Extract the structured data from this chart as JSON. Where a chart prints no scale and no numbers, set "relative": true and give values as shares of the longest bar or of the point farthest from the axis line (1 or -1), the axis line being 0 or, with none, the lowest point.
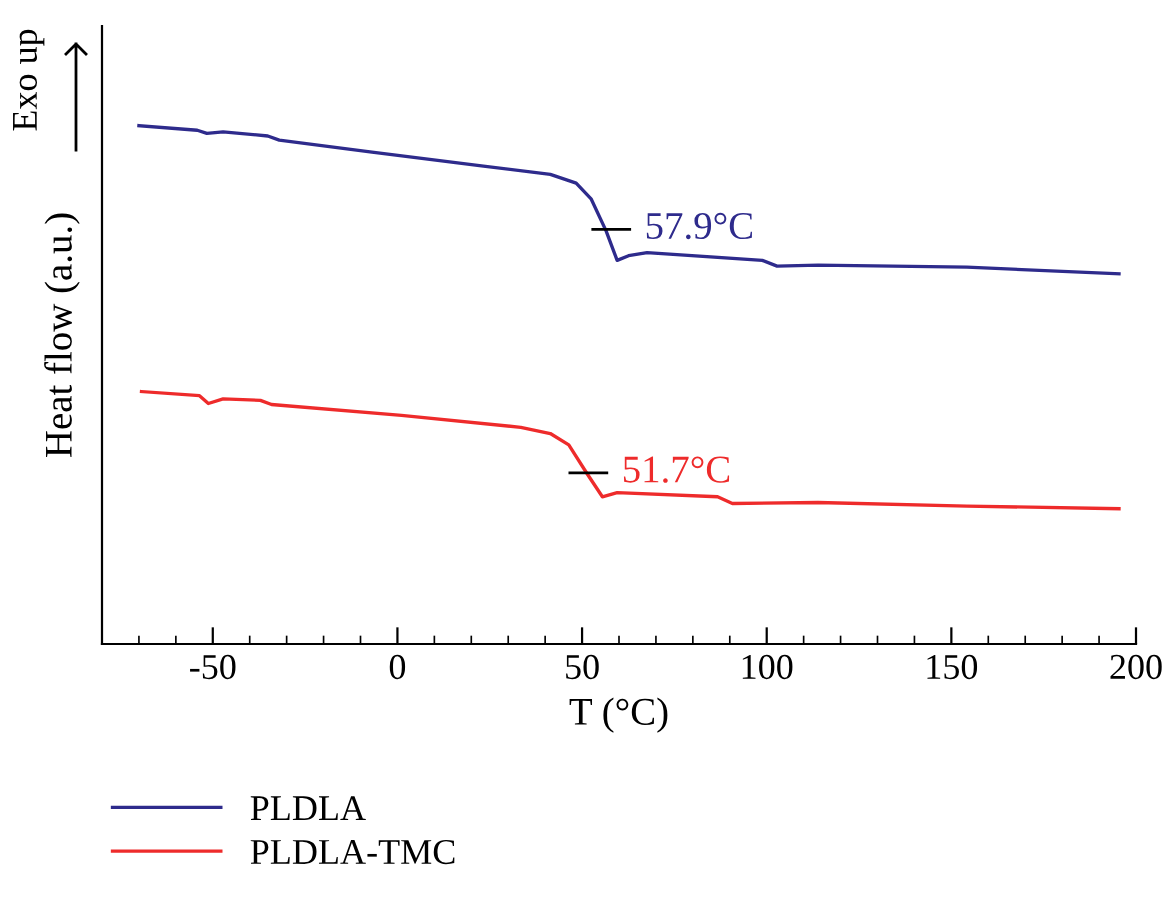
{
  "chart_data": {
    "type": "line",
    "relative": true,
    "xlabel": "T (°C)",
    "ylabel": "Heat flow (a.u.)",
    "xlim": [
      -80,
      200
    ],
    "xticks": [
      -50,
      0,
      50,
      100,
      150,
      200
    ],
    "grid": false,
    "legend": "bottom left",
    "tick_labels": "x",
    "annotations": [
      "Exo up",
      {
        "text": "57.9°C",
        "x": 57.9,
        "y": 0.8
      },
      {
        "text": "51.7°C",
        "x": 51.7,
        "y": 0.33
      }
    ],
    "series": [
      {
        "name": "PLDLA",
        "color": "#2e2b8c",
        "x": [
          -70,
          -54.2,
          -51.6,
          -47.2,
          -35.1,
          -32,
          -6.9,
          23.3,
          41.4,
          48.4,
          52.5,
          56.5,
          59.5,
          62.6,
          67.6,
          98.8,
          102.8,
          113.9,
          154.2,
          195.4
        ],
        "values": [
          1.0,
          0.991,
          0.985,
          0.988,
          0.98,
          0.972,
          0.949,
          0.922,
          0.906,
          0.889,
          0.858,
          0.797,
          0.74,
          0.749,
          0.755,
          0.74,
          0.729,
          0.731,
          0.727,
          0.714
        ]
      },
      {
        "name": "PLDLA-TMC",
        "color": "#ee2b2b",
        "x": [
          -69.3,
          -53.6,
          -51.2,
          -47.2,
          -37.1,
          -34.1,
          1.1,
          33.4,
          41.4,
          46.4,
          51.5,
          55.5,
          59.5,
          86.7,
          90.7,
          113.9,
          154.2,
          195.4
        ],
        "values": [
          0.487,
          0.479,
          0.464,
          0.473,
          0.47,
          0.462,
          0.441,
          0.418,
          0.406,
          0.384,
          0.327,
          0.284,
          0.292,
          0.284,
          0.271,
          0.273,
          0.266,
          0.261
        ]
      }
    ]
  }
}
